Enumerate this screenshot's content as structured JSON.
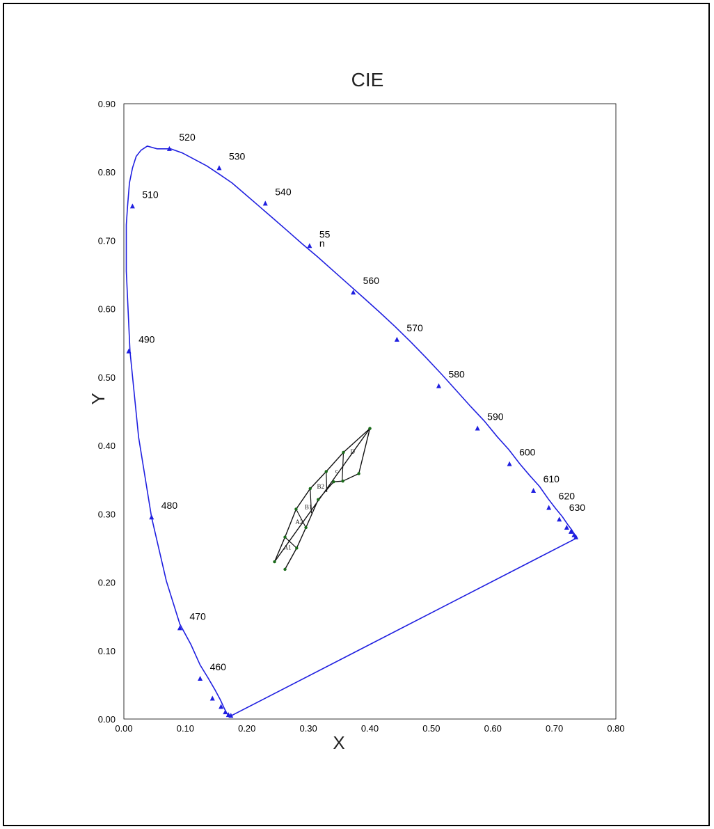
{
  "chart_data": {
    "type": "scatter",
    "title": "CIE",
    "xlabel": "X",
    "ylabel": "Y",
    "xlim": [
      0,
      0.8
    ],
    "ylim": [
      0,
      0.9
    ],
    "x_ticks": [
      "0.00",
      "0.10",
      "0.20",
      "0.30",
      "0.40",
      "0.50",
      "0.60",
      "0.70",
      "0.80"
    ],
    "y_ticks": [
      "0.00",
      "0.10",
      "0.20",
      "0.30",
      "0.40",
      "0.50",
      "0.60",
      "0.70",
      "0.80",
      "0.90"
    ],
    "colors": {
      "locus": "#1f1fe0",
      "regions": "#111111",
      "region_points": "#1a6b1a"
    },
    "spectral_locus": {
      "name": "",
      "x": [
        0.175,
        0.174,
        0.172,
        0.17,
        0.167,
        0.163,
        0.157,
        0.148,
        0.137,
        0.124,
        0.109,
        0.091,
        0.069,
        0.045,
        0.024,
        0.01,
        0.004,
        0.004,
        0.006,
        0.009,
        0.014,
        0.02,
        0.028,
        0.038,
        0.054,
        0.076,
        0.095,
        0.114,
        0.135,
        0.155,
        0.176,
        0.198,
        0.22,
        0.243,
        0.266,
        0.29,
        0.315,
        0.34,
        0.365,
        0.39,
        0.416,
        0.441,
        0.466,
        0.492,
        0.517,
        0.541,
        0.564,
        0.586,
        0.607,
        0.626,
        0.644,
        0.66,
        0.676,
        0.69,
        0.702,
        0.713,
        0.722,
        0.728,
        0.732,
        0.735,
        0.737,
        0.737
      ],
      "y": [
        0.005,
        0.005,
        0.005,
        0.005,
        0.009,
        0.016,
        0.028,
        0.043,
        0.06,
        0.079,
        0.109,
        0.139,
        0.202,
        0.295,
        0.412,
        0.538,
        0.655,
        0.723,
        0.75,
        0.784,
        0.806,
        0.823,
        0.832,
        0.838,
        0.834,
        0.834,
        0.828,
        0.819,
        0.809,
        0.797,
        0.784,
        0.767,
        0.75,
        0.732,
        0.714,
        0.695,
        0.676,
        0.656,
        0.636,
        0.616,
        0.595,
        0.574,
        0.552,
        0.528,
        0.504,
        0.48,
        0.457,
        0.436,
        0.413,
        0.394,
        0.373,
        0.356,
        0.34,
        0.322,
        0.308,
        0.296,
        0.284,
        0.277,
        0.271,
        0.268,
        0.265,
        0.265
      ]
    },
    "purple_line": {
      "from": [
        0.737,
        0.265
      ],
      "to": [
        0.175,
        0.005
      ]
    },
    "wavelength_markers": [
      {
        "label": "460",
        "x": 0.124,
        "y": 0.059
      },
      {
        "label": "470",
        "x": 0.091,
        "y": 0.133
      },
      {
        "label": "480",
        "x": 0.045,
        "y": 0.295
      },
      {
        "label": "490",
        "x": 0.008,
        "y": 0.538
      },
      {
        "label": "510",
        "x": 0.014,
        "y": 0.75
      },
      {
        "label": "520",
        "x": 0.074,
        "y": 0.834
      },
      {
        "label": "530",
        "x": 0.155,
        "y": 0.806
      },
      {
        "label": "540",
        "x": 0.23,
        "y": 0.754
      },
      {
        "label": "55\nn",
        "x": 0.302,
        "y": 0.692
      },
      {
        "label": "560",
        "x": 0.373,
        "y": 0.624
      },
      {
        "label": "570",
        "x": 0.444,
        "y": 0.555
      },
      {
        "label": "580",
        "x": 0.512,
        "y": 0.487
      },
      {
        "label": "590",
        "x": 0.575,
        "y": 0.425
      },
      {
        "label": "600",
        "x": 0.627,
        "y": 0.373
      },
      {
        "label": "610",
        "x": 0.666,
        "y": 0.334
      },
      {
        "label": "620",
        "x": 0.691,
        "y": 0.309
      },
      {
        "label": "630",
        "x": 0.708,
        "y": 0.292
      }
    ],
    "extra_markers": [
      {
        "x": 0.144,
        "y": 0.03
      },
      {
        "x": 0.158,
        "y": 0.018
      },
      {
        "x": 0.165,
        "y": 0.01
      },
      {
        "x": 0.17,
        "y": 0.006
      },
      {
        "x": 0.174,
        "y": 0.005
      },
      {
        "x": 0.72,
        "y": 0.28
      },
      {
        "x": 0.727,
        "y": 0.274
      },
      {
        "x": 0.732,
        "y": 0.269
      },
      {
        "x": 0.735,
        "y": 0.266
      }
    ],
    "region_outline": {
      "upper": [
        [
          0.245,
          0.23
        ],
        [
          0.262,
          0.266
        ],
        [
          0.28,
          0.307
        ],
        [
          0.303,
          0.337
        ],
        [
          0.329,
          0.362
        ],
        [
          0.357,
          0.39
        ],
        [
          0.4,
          0.425
        ]
      ],
      "lower": [
        [
          0.262,
          0.219
        ],
        [
          0.281,
          0.25
        ],
        [
          0.296,
          0.28
        ],
        [
          0.316,
          0.321
        ],
        [
          0.341,
          0.347
        ],
        [
          0.356,
          0.348
        ],
        [
          0.382,
          0.359
        ],
        [
          0.4,
          0.425
        ]
      ],
      "dividers": [
        [
          [
            0.262,
            0.266
          ],
          [
            0.281,
            0.25
          ]
        ],
        [
          [
            0.28,
            0.307
          ],
          [
            0.296,
            0.28
          ]
        ],
        [
          [
            0.303,
            0.337
          ],
          [
            0.305,
            0.301
          ]
        ],
        [
          [
            0.329,
            0.362
          ],
          [
            0.33,
            0.332
          ]
        ],
        [
          [
            0.357,
            0.39
          ],
          [
            0.355,
            0.348
          ]
        ]
      ]
    },
    "region_labels": [
      {
        "label": "A1",
        "x": 0.266,
        "y": 0.248
      },
      {
        "label": "A2",
        "x": 0.285,
        "y": 0.285
      },
      {
        "label": "B1",
        "x": 0.3,
        "y": 0.307
      },
      {
        "label": "B2",
        "x": 0.32,
        "y": 0.337
      },
      {
        "label": "c",
        "x": 0.346,
        "y": 0.36
      },
      {
        "label": "D",
        "x": 0.372,
        "y": 0.388
      }
    ]
  }
}
